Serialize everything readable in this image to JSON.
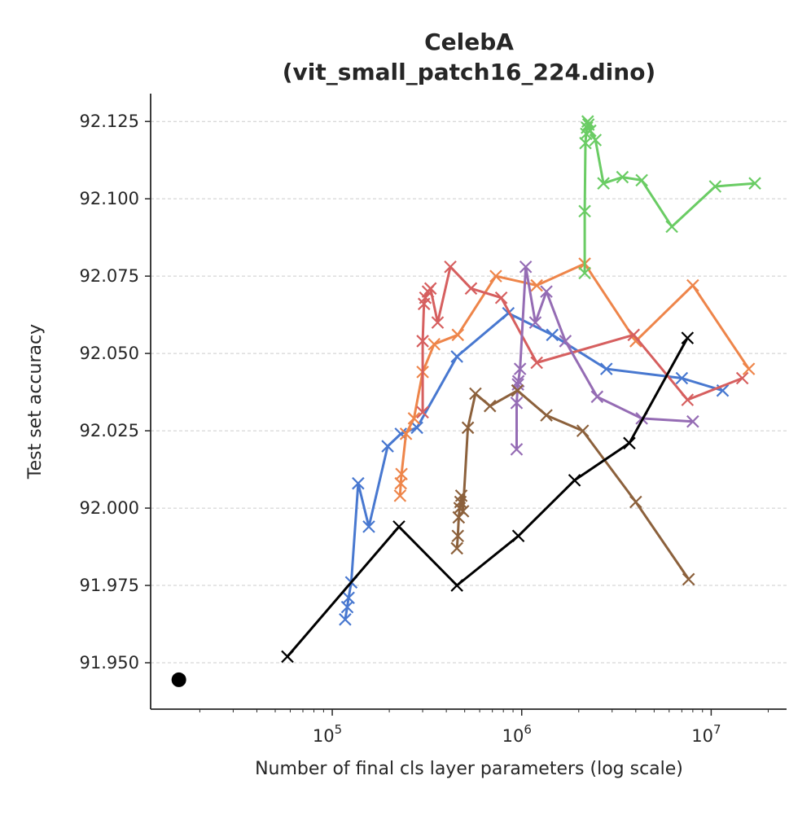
{
  "chart_data": {
    "type": "line",
    "title_line1": "CelebA",
    "title_line2": "(vit_small_patch16_224.dino)",
    "xlabel": "Number of final cls layer parameters (log scale)",
    "ylabel": "Test set accuracy",
    "xscale": "log",
    "xlim": [
      11000,
      25000000
    ],
    "ylim": [
      91.935,
      92.134
    ],
    "yticks": [
      91.95,
      91.975,
      92.0,
      92.025,
      92.05,
      92.075,
      92.1,
      92.125
    ],
    "ytick_labels": [
      "91.950",
      "91.975",
      "92.000",
      "92.025",
      "92.050",
      "92.075",
      "92.100",
      "92.125"
    ],
    "xticks": [
      100000,
      1000000,
      10000000
    ],
    "xtick_bases": [
      "10",
      "10",
      "10"
    ],
    "xtick_exponents": [
      "5",
      "6",
      "7"
    ],
    "grid": "horizontal dashed",
    "baseline_point": {
      "x": 15500,
      "y": 91.9445,
      "color": "#000000"
    },
    "series": [
      {
        "name": "blue",
        "color": "#4878d0",
        "marker": "x",
        "x": [
          117000,
          120000,
          122000,
          126000,
          137000,
          156000,
          196000,
          230000,
          280000,
          455000,
          850000,
          1450000,
          2800000,
          7000000,
          11500000
        ],
        "y": [
          91.964,
          91.968,
          91.971,
          91.976,
          92.008,
          91.994,
          92.02,
          92.024,
          92.026,
          92.049,
          92.063,
          92.056,
          92.045,
          92.042,
          92.038
        ]
      },
      {
        "name": "orange",
        "color": "#ee854a",
        "marker": "x",
        "x": [
          228000,
          230000,
          232000,
          245000,
          270000,
          300000,
          345000,
          460000,
          730000,
          1200000,
          2150000,
          4000000,
          8000000,
          15800000
        ],
        "y": [
          92.004,
          92.008,
          92.011,
          92.024,
          92.029,
          92.044,
          92.053,
          92.056,
          92.075,
          92.072,
          92.079,
          92.054,
          92.072,
          92.045
        ]
      },
      {
        "name": "red",
        "color": "#d65f5f",
        "marker": "x",
        "x": [
          300000,
          300000,
          305000,
          310000,
          320000,
          330000,
          360000,
          420000,
          540000,
          780000,
          1200000,
          3900000,
          7500000,
          14600000
        ],
        "y": [
          92.031,
          92.054,
          92.066,
          92.068,
          92.07,
          92.071,
          92.06,
          92.078,
          92.071,
          92.068,
          92.047,
          92.056,
          92.035,
          92.042
        ]
      },
      {
        "name": "green",
        "color": "#6acc64",
        "marker": "x",
        "x": [
          2150000,
          2150000,
          2170000,
          2190000,
          2210000,
          2230000,
          2250000,
          2300000,
          2450000,
          2700000,
          3400000,
          4300000,
          6200000,
          10500000,
          17000000
        ],
        "y": [
          92.076,
          92.096,
          92.118,
          92.121,
          92.123,
          92.125,
          92.124,
          92.122,
          92.119,
          92.105,
          92.107,
          92.106,
          92.091,
          92.104,
          92.105
        ]
      },
      {
        "name": "purple",
        "color": "#956cb4",
        "marker": "x",
        "x": [
          940000,
          940000,
          950000,
          955000,
          960000,
          980000,
          1050000,
          1180000,
          1350000,
          1700000,
          2500000,
          4300000,
          8000000
        ],
        "y": [
          92.019,
          92.034,
          92.038,
          92.04,
          92.041,
          92.045,
          92.078,
          92.06,
          92.07,
          92.054,
          92.036,
          92.029,
          92.028
        ]
      },
      {
        "name": "brown",
        "color": "#8c613c",
        "marker": "x",
        "x": [
          455000,
          460000,
          465000,
          470000,
          475000,
          480000,
          490000,
          520000,
          570000,
          680000,
          950000,
          1350000,
          2100000,
          4000000,
          7600000
        ],
        "y": [
          91.987,
          91.991,
          91.997,
          92.0,
          92.002,
          92.004,
          91.999,
          92.026,
          92.037,
          92.033,
          92.038,
          92.03,
          92.025,
          92.002,
          91.977
        ]
      },
      {
        "name": "black",
        "color": "#000000",
        "marker": "x",
        "x": [
          58000,
          225000,
          455000,
          960000,
          1900000,
          3700000,
          7500000
        ],
        "y": [
          91.952,
          91.994,
          91.975,
          91.991,
          92.009,
          92.021,
          92.055
        ]
      }
    ]
  }
}
